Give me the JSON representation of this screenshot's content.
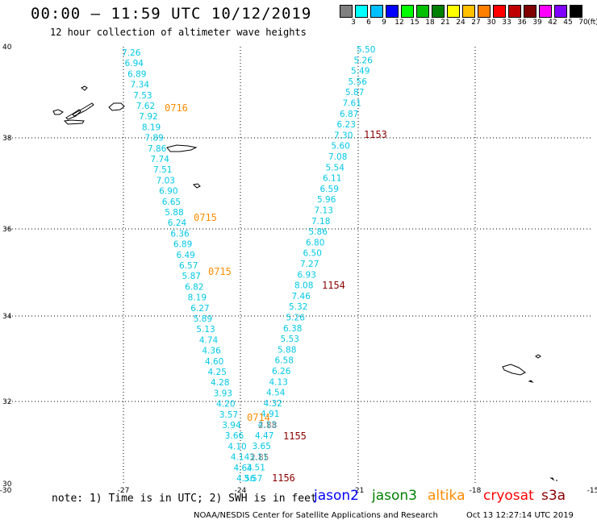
{
  "title": "00:00 — 11:59 UTC 10/12/2019",
  "subtitle": "12 hour collection of altimeter wave heights",
  "colorbar": {
    "unit": "(ft)",
    "labels": [
      "3",
      "6",
      "9",
      "12",
      "15",
      "18",
      "21",
      "24",
      "27",
      "30",
      "33",
      "36",
      "39",
      "42",
      "45",
      "70"
    ],
    "colors": [
      "#808080",
      "#00ffff",
      "#00bfff",
      "#0000ff",
      "#00ff00",
      "#00c000",
      "#008000",
      "#ffff00",
      "#ffc000",
      "#ff8000",
      "#ff0000",
      "#c00000",
      "#800000",
      "#ff00ff",
      "#8000ff",
      "#000000"
    ]
  },
  "axes": {
    "lat_labels": [
      "40",
      "38",
      "36",
      "34",
      "32",
      "30"
    ],
    "lon_labels": [
      "-30",
      "-27",
      "-24",
      "-21",
      "-18",
      "-15"
    ]
  },
  "tracks": [
    {
      "time_label": "0716",
      "time_label_color": "#ff8c00",
      "swh_color": "#00c8e6",
      "swh": [
        "7.26",
        "6.94",
        "6.89",
        "7.34",
        "7.53",
        "7.62",
        "7.92",
        "8.19",
        "7.89",
        "7.86",
        "7.74",
        "7.51",
        "7.03",
        "6.90",
        "6.65",
        "5.88",
        "6.24",
        "6.36",
        "6.89",
        "6.49",
        "6.57",
        "5.87",
        "6.82",
        "8.19",
        "6.27",
        "5.89",
        "5.13",
        "4.74",
        "4.36",
        "4.60",
        "4.25",
        "4.28",
        "3.93",
        "4.20",
        "3.57",
        "3.94",
        "3.66",
        "4.10",
        "4.14",
        "4.64",
        "4.56"
      ]
    },
    {
      "time_label": "0715",
      "time_label_color": "#ff8c00"
    },
    {
      "time_label": "0715",
      "time_label_color": "#ff8c00"
    },
    {
      "time_label": "0714",
      "time_label_color": "#ff8c00",
      "swh_color": "#808080",
      "swh": [
        "2.88",
        "2.85"
      ]
    },
    {
      "time_label": "1153",
      "time_label_color": "#8b0000",
      "swh_color": "#00c8e6",
      "swh": [
        "5.50",
        "5.26",
        "5.49",
        "5.56",
        "5.87",
        "7.61",
        "6.87",
        "6.23",
        "7.30",
        "5.60",
        "7.08",
        "5.54",
        "6.11",
        "6.59",
        "5.96",
        "7.13",
        "7.18",
        "5.86",
        "6.80",
        "6.50",
        "7.27",
        "6.93",
        "8.08",
        "7.46",
        "5.32",
        "5.26",
        "6.38",
        "5.53",
        "5.88",
        "6.58",
        "6.26",
        "4.13",
        "4.54",
        "4.32",
        "4.91",
        "4.13",
        "4.47",
        "3.65",
        "3.11",
        "3.51",
        "3.57"
      ]
    },
    {
      "time_label": "1154",
      "time_label_color": "#8b0000"
    },
    {
      "time_label": "1155",
      "time_label_color": "#8b0000"
    },
    {
      "time_label": "1156",
      "time_label_color": "#8b0000"
    }
  ],
  "note": "note: 1) Time is in UTC; 2) SWH is in feet",
  "legend": [
    {
      "name": "jason2",
      "color": "#0000ff"
    },
    {
      "name": "jason3",
      "color": "#008000"
    },
    {
      "name": "altika",
      "color": "#ff8c00"
    },
    {
      "name": "cryosat",
      "color": "#ff0000"
    },
    {
      "name": "s3a",
      "color": "#8b0000"
    }
  ],
  "credit": "NOAA/NESDIS Center for Satellite Applications and Research",
  "timestamp": "Oct 13 12:27:14 UTC 2019"
}
